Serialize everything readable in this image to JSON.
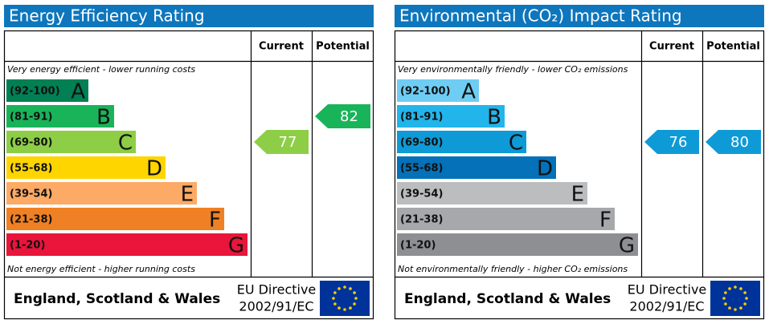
{
  "panels": [
    {
      "title": "Energy Efficiency Rating",
      "headers": [
        "Current",
        "Potential"
      ],
      "top_note": "Very energy efficient - lower running costs",
      "bottom_note": "Not energy efficient - higher running costs",
      "bands": [
        {
          "range": "(92-100)",
          "letter": "A",
          "color": "#008054"
        },
        {
          "range": "(81-91)",
          "letter": "B",
          "color": "#19b459"
        },
        {
          "range": "(69-80)",
          "letter": "C",
          "color": "#8dce46"
        },
        {
          "range": "(55-68)",
          "letter": "D",
          "color": "#ffd500"
        },
        {
          "range": "(39-54)",
          "letter": "E",
          "color": "#fcaa65"
        },
        {
          "range": "(21-38)",
          "letter": "F",
          "color": "#ef8023"
        },
        {
          "range": "(1-20)",
          "letter": "G",
          "color": "#e9153b"
        }
      ],
      "current": 77,
      "potential": 82,
      "footer": "England, Scotland & Wales",
      "directive": [
        "EU Directive",
        "2002/91/EC"
      ]
    },
    {
      "title": "Environmental (CO₂) Impact Rating",
      "headers": [
        "Current",
        "Potential"
      ],
      "top_note": "Very environmentally friendly - lower CO₂ emissions",
      "bottom_note": "Not environmentally friendly - higher CO₂ emissions",
      "bands": [
        {
          "range": "(92-100)",
          "letter": "A",
          "color": "#6fcdf3"
        },
        {
          "range": "(81-91)",
          "letter": "B",
          "color": "#22b5eb"
        },
        {
          "range": "(69-80)",
          "letter": "C",
          "color": "#0e9ad6"
        },
        {
          "range": "(55-68)",
          "letter": "D",
          "color": "#0471b9"
        },
        {
          "range": "(39-54)",
          "letter": "E",
          "color": "#bbbdbf"
        },
        {
          "range": "(21-38)",
          "letter": "F",
          "color": "#a6a8ab"
        },
        {
          "range": "(1-20)",
          "letter": "G",
          "color": "#8e8f92"
        }
      ],
      "current": 76,
      "potential": 80,
      "footer": "England, Scotland & Wales",
      "directive": [
        "EU Directive",
        "2002/91/EC"
      ]
    }
  ]
}
